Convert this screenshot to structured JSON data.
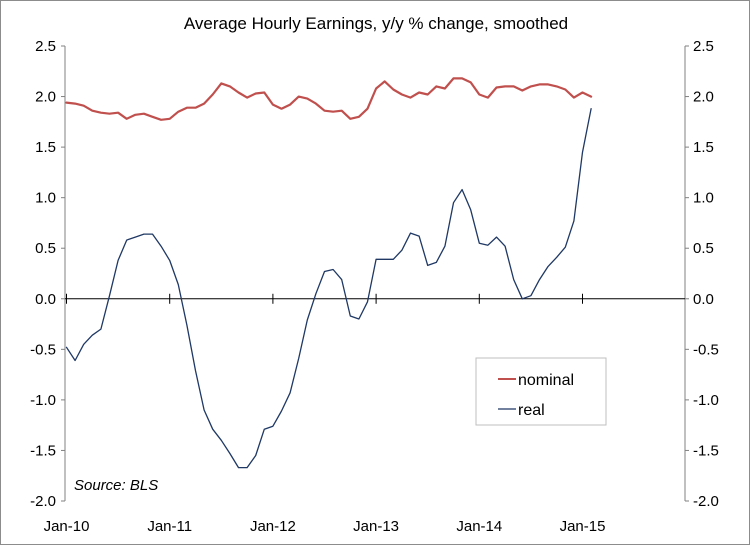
{
  "chart_data": {
    "type": "line",
    "title": "Average Hourly Earnings, y/y % change, smoothed",
    "source": "Source: BLS",
    "x_labels": [
      "Jan-10",
      "Jan-11",
      "Jan-12",
      "Jan-13",
      "Jan-14",
      "Jan-15"
    ],
    "x_start": "2010-01",
    "x_end": "2015-03",
    "ylim": [
      -2.0,
      2.5
    ],
    "y_ticks": [
      "2.5",
      "2.0",
      "1.5",
      "1.0",
      "0.5",
      "0.0",
      "-0.5",
      "-1.0",
      "-1.5",
      "-2.0"
    ],
    "y_tick_values": [
      2.5,
      2.0,
      1.5,
      1.0,
      0.5,
      0.0,
      -0.5,
      -1.0,
      -1.5,
      -2.0
    ],
    "secondary_axis": true,
    "grid": false,
    "legend_position": "bottom-right",
    "series": [
      {
        "name": "nominal",
        "color": "#c0504d",
        "values": [
          1.94,
          1.93,
          1.91,
          1.86,
          1.84,
          1.83,
          1.84,
          1.78,
          1.82,
          1.83,
          1.8,
          1.77,
          1.78,
          1.85,
          1.89,
          1.89,
          1.93,
          2.02,
          2.13,
          2.1,
          2.04,
          1.99,
          2.03,
          2.04,
          1.92,
          1.88,
          1.92,
          2.0,
          1.98,
          1.93,
          1.86,
          1.85,
          1.86,
          1.78,
          1.8,
          1.88,
          2.08,
          2.15,
          2.07,
          2.02,
          1.99,
          2.04,
          2.02,
          2.1,
          2.08,
          2.18,
          2.18,
          2.14,
          2.02,
          1.99,
          2.09,
          2.1,
          2.1,
          2.06,
          2.1,
          2.12,
          2.12,
          2.1,
          2.07,
          1.99,
          2.04,
          2.0
        ]
      },
      {
        "name": "real",
        "color": "#1f3864",
        "values": [
          -0.48,
          -0.61,
          -0.45,
          -0.36,
          -0.3,
          0.03,
          0.38,
          0.58,
          0.61,
          0.64,
          0.64,
          0.52,
          0.38,
          0.14,
          -0.26,
          -0.71,
          -1.1,
          -1.29,
          -1.4,
          -1.53,
          -1.67,
          -1.67,
          -1.55,
          -1.29,
          -1.26,
          -1.11,
          -0.93,
          -0.59,
          -0.21,
          0.05,
          0.27,
          0.29,
          0.19,
          -0.17,
          -0.2,
          -0.03,
          0.39,
          0.39,
          0.39,
          0.48,
          0.65,
          0.62,
          0.33,
          0.36,
          0.52,
          0.95,
          1.08,
          0.88,
          0.55,
          0.53,
          0.61,
          0.52,
          0.19,
          0.0,
          0.03,
          0.19,
          0.32,
          0.41,
          0.51,
          0.77,
          1.45,
          1.88
        ]
      }
    ]
  }
}
